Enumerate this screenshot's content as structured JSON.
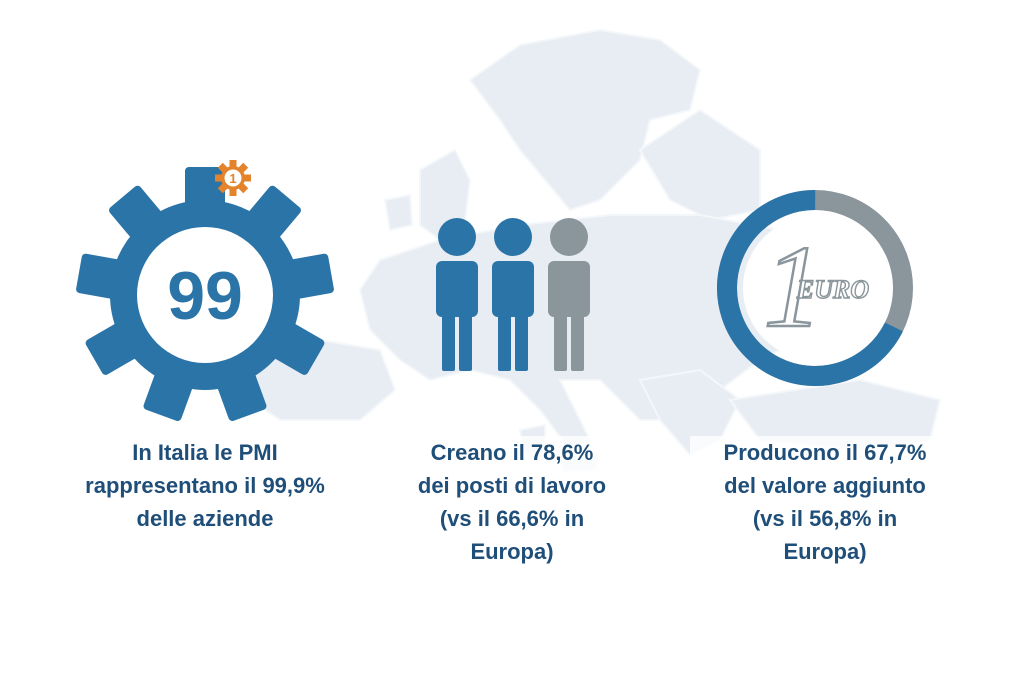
{
  "colors": {
    "primary_blue": "#2b74a8",
    "gray": "#8a959c",
    "text_blue": "#1f4e79",
    "badge_orange": "#e3832b",
    "map_fill": "#e6ebf3"
  },
  "stat_sme_share": {
    "icon": "gear-icon",
    "badge_number": "1",
    "gear_number": "99",
    "caption_lines": [
      "In Italia le PMI",
      "rappresentano il 99,9%",
      "delle aziende"
    ]
  },
  "stat_jobs": {
    "icon": "people-icon",
    "caption_lines": [
      "Creano il 78,6%",
      "dei posti di lavoro",
      "(vs il 66,6% in",
      "Europa)"
    ]
  },
  "stat_value_added": {
    "icon": "euro-coin-icon",
    "coin_digit": "1",
    "coin_label": "EURO",
    "ring_fill_fraction": 0.677,
    "caption_lines": [
      "Producono il 67,7%",
      "del valore aggiunto",
      "(vs il 56,8% in",
      "Europa)"
    ]
  }
}
